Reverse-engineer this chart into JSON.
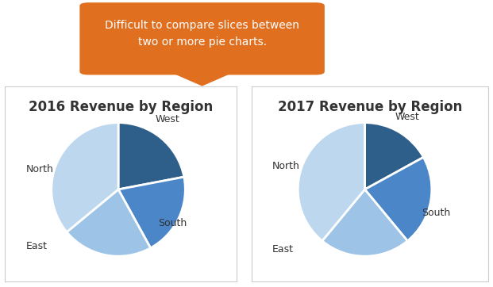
{
  "title1": "2016 Revenue by Region",
  "title2": "2017 Revenue by Region",
  "labels": [
    "West",
    "South",
    "East",
    "North"
  ],
  "values1": [
    22,
    20,
    22,
    36
  ],
  "values2": [
    17,
    22,
    22,
    39
  ],
  "colors": [
    "#2E5F8A",
    "#4A86C8",
    "#9DC3E6",
    "#BDD7EE"
  ],
  "callout_text": "Difficult to compare slices between\ntwo or more pie charts.",
  "callout_color": "#E07020",
  "callout_text_color": "#FFFFFF",
  "bg_color": "#FFFFFF",
  "title_fontsize": 12,
  "label_fontsize": 9,
  "startangle1": 90,
  "startangle2": 90
}
